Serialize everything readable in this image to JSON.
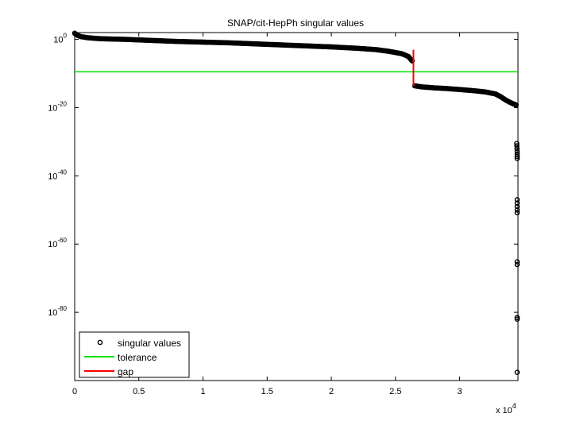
{
  "chart_data": {
    "type": "scatter",
    "title": "SNAP/cit-HepPh singular values",
    "xlabel": "",
    "ylabel": "",
    "x_scale_label": {
      "base": "x 10",
      "exponent": "4"
    },
    "xlim": [
      0,
      34546
    ],
    "ylim_log10": [
      -100,
      2
    ],
    "y_scale": "log",
    "grid": false,
    "legend_position": "bottom-left",
    "x_ticks": [
      {
        "value": 0,
        "label": "0"
      },
      {
        "value": 5000,
        "label": "0.5"
      },
      {
        "value": 10000,
        "label": "1"
      },
      {
        "value": 15000,
        "label": "1.5"
      },
      {
        "value": 20000,
        "label": "2"
      },
      {
        "value": 25000,
        "label": "2.5"
      },
      {
        "value": 30000,
        "label": "3"
      }
    ],
    "y_ticks": [
      {
        "exp": 0,
        "base": "10",
        "sup": "0"
      },
      {
        "exp": -20,
        "base": "10",
        "sup": "-20"
      },
      {
        "exp": -40,
        "base": "10",
        "sup": "-40"
      },
      {
        "exp": -60,
        "base": "10",
        "sup": "-60"
      },
      {
        "exp": -80,
        "base": "10",
        "sup": "-80"
      }
    ],
    "series": [
      {
        "name": "singular values",
        "kind": "markers",
        "color": "#000000",
        "curve_log10": [
          [
            0,
            1.8
          ],
          [
            200,
            1.2
          ],
          [
            500,
            0.8
          ],
          [
            1000,
            0.5
          ],
          [
            2000,
            0.2
          ],
          [
            4000,
            0.0
          ],
          [
            6000,
            -0.3
          ],
          [
            8000,
            -0.6
          ],
          [
            10000,
            -0.8
          ],
          [
            12000,
            -1.0
          ],
          [
            14000,
            -1.3
          ],
          [
            16000,
            -1.6
          ],
          [
            18000,
            -1.9
          ],
          [
            20000,
            -2.2
          ],
          [
            22000,
            -2.6
          ],
          [
            23500,
            -3.0
          ],
          [
            24500,
            -3.5
          ],
          [
            25500,
            -4.2
          ],
          [
            26000,
            -5.0
          ],
          [
            26300,
            -6.3
          ],
          [
            26500,
            -13.6
          ],
          [
            27000,
            -13.9
          ],
          [
            28000,
            -14.2
          ],
          [
            29000,
            -14.4
          ],
          [
            30000,
            -14.7
          ],
          [
            31000,
            -15.0
          ],
          [
            32000,
            -15.4
          ],
          [
            32800,
            -16.0
          ],
          [
            33200,
            -16.8
          ],
          [
            33600,
            -17.8
          ],
          [
            34000,
            -18.6
          ],
          [
            34400,
            -19.2
          ]
        ],
        "outliers_log10": [
          [
            34450,
            -30.5
          ],
          [
            34460,
            -31.2
          ],
          [
            34470,
            -32.0
          ],
          [
            34480,
            -32.8
          ],
          [
            34490,
            -33.6
          ],
          [
            34500,
            -34.3
          ],
          [
            34510,
            -34.9
          ],
          [
            34515,
            -47.0
          ],
          [
            34520,
            -48.0
          ],
          [
            34525,
            -49.0
          ],
          [
            34530,
            -50.0
          ],
          [
            34535,
            -50.8
          ],
          [
            34538,
            -65.2
          ],
          [
            34540,
            -66.0
          ],
          [
            34542,
            -81.5
          ],
          [
            34543,
            -82.0
          ],
          [
            34545,
            -97.6
          ]
        ]
      },
      {
        "name": "tolerance",
        "kind": "hline",
        "color": "#00e000",
        "y_log10": -9.5
      },
      {
        "name": "gap",
        "kind": "vline",
        "color": "#ff0000",
        "x": 26400,
        "y_log10": [
          -3.0,
          -13.6
        ]
      }
    ]
  }
}
